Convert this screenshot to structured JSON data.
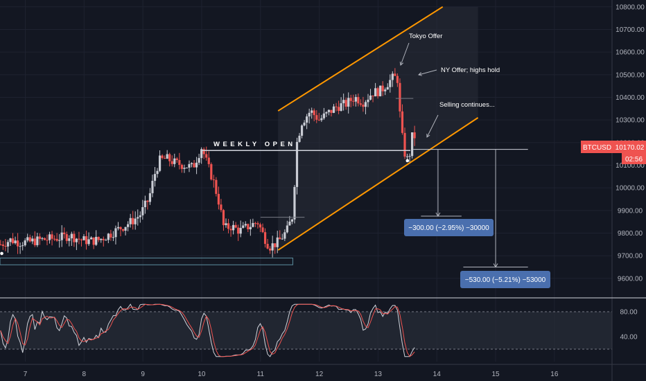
{
  "chart_data": {
    "type": "candlestick",
    "symbol": "BTCUSD",
    "price_axis": {
      "ylim": [
        9520,
        10830
      ],
      "ticks": [
        9600,
        9700,
        9800,
        9900,
        10000,
        10100,
        10200,
        10300,
        10400,
        10500,
        10600,
        10700,
        10800
      ],
      "tick_labels": [
        "9600.00",
        "9700.00",
        "9800.00",
        "9900.00",
        "10000.00",
        "10100.00",
        "10200.00",
        "10300.00",
        "10400.00",
        "10500.00",
        "10600.00",
        "10700.00",
        "10800.00"
      ]
    },
    "time_axis": {
      "xlim": [
        6.57,
        16.98
      ],
      "ticks": [
        7,
        8,
        9,
        10,
        11,
        12,
        13,
        14,
        15,
        16
      ],
      "tick_labels": [
        "7",
        "8",
        "9",
        "10",
        "11",
        "12",
        "13",
        "14",
        "15",
        "16"
      ]
    },
    "last_price": {
      "label": "BTCUSD",
      "value": "10170.02",
      "countdown": "02:56",
      "price": 10170.02
    },
    "price_path": [
      [
        6.58,
        9750
      ],
      [
        6.75,
        9770
      ],
      [
        6.9,
        9760
      ],
      [
        7.05,
        9760
      ],
      [
        7.25,
        9770
      ],
      [
        7.45,
        9775
      ],
      [
        7.6,
        9780
      ],
      [
        7.75,
        9790
      ],
      [
        7.95,
        9770
      ],
      [
        8.1,
        9765
      ],
      [
        8.25,
        9770
      ],
      [
        8.4,
        9790
      ],
      [
        8.6,
        9820
      ],
      [
        8.8,
        9850
      ],
      [
        8.95,
        9880
      ],
      [
        9.1,
        9950
      ],
      [
        9.2,
        10060
      ],
      [
        9.28,
        10120
      ],
      [
        9.4,
        10130
      ],
      [
        9.55,
        10110
      ],
      [
        9.7,
        10100
      ],
      [
        9.85,
        10090
      ],
      [
        9.95,
        10150
      ],
      [
        10.0,
        10180
      ],
      [
        10.1,
        10100
      ],
      [
        10.2,
        10030
      ],
      [
        10.3,
        9930
      ],
      [
        10.38,
        9820
      ],
      [
        10.5,
        9830
      ],
      [
        10.65,
        9810
      ],
      [
        10.8,
        9830
      ],
      [
        10.95,
        9850
      ],
      [
        11.05,
        9790
      ],
      [
        11.15,
        9740
      ],
      [
        11.3,
        9760
      ],
      [
        11.45,
        9810
      ],
      [
        11.55,
        9880
      ],
      [
        11.62,
        10200
      ],
      [
        11.7,
        10290
      ],
      [
        11.85,
        10340
      ],
      [
        12.0,
        10300
      ],
      [
        12.15,
        10330
      ],
      [
        12.3,
        10360
      ],
      [
        12.45,
        10370
      ],
      [
        12.6,
        10400
      ],
      [
        12.75,
        10380
      ],
      [
        12.9,
        10420
      ],
      [
        13.05,
        10430
      ],
      [
        13.15,
        10460
      ],
      [
        13.27,
        10490
      ],
      [
        13.33,
        10480
      ],
      [
        13.38,
        10300
      ],
      [
        13.45,
        10150
      ],
      [
        13.52,
        10120
      ],
      [
        13.6,
        10260
      ],
      [
        13.66,
        10170
      ]
    ],
    "annotations": {
      "weekly_open": {
        "label": "WEEKLY OPEN",
        "price": 10165
      },
      "tokyo": {
        "label": "Tokyo Offer"
      },
      "ny": {
        "label": "NY Offer; highs hold"
      },
      "selling": {
        "label": "Selling continues..."
      },
      "target1": {
        "label": "−300.00 (−2.95%) −30000"
      },
      "target2": {
        "label": "−530.00 (−5.21%) −53000"
      }
    },
    "channel": {
      "upper": [
        [
          11.3,
          10340
        ],
        [
          14.1,
          10800
        ]
      ],
      "lower": [
        [
          11.3,
          9725
        ],
        [
          14.7,
          10310
        ]
      ]
    }
  },
  "oscillator": {
    "ylim": [
      0,
      100
    ],
    "ticks": [
      40,
      80
    ],
    "tick_labels": [
      "40.00",
      "80.00"
    ],
    "band": [
      20,
      80
    ]
  },
  "colors": {
    "background": "#131722",
    "up": "#c9ccd4",
    "down": "#ef5350",
    "channel": "#ff9800",
    "label_box": "#4a6fae",
    "price_tag": "#ef5350"
  }
}
